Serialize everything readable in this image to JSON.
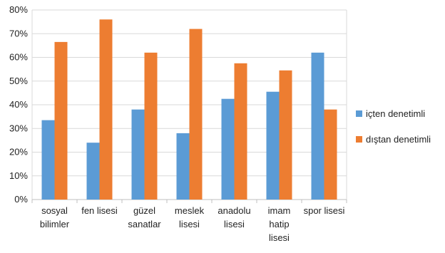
{
  "chart_data": {
    "type": "bar",
    "title": "",
    "xlabel": "",
    "ylabel": "",
    "ylim": [
      0,
      80
    ],
    "y_ticks": [
      "0%",
      "10%",
      "20%",
      "30%",
      "40%",
      "50%",
      "60%",
      "70%",
      "80%"
    ],
    "y_unit": "%",
    "grid": true,
    "legend_position": "right",
    "categories": [
      [
        "sosyal",
        "bilimler"
      ],
      [
        "fen lisesi"
      ],
      [
        "güzel",
        "sanatlar"
      ],
      [
        "meslek",
        "lisesi"
      ],
      [
        "anadolu",
        "lisesi"
      ],
      [
        "imam",
        "hatip",
        "lisesi"
      ],
      [
        "spor lisesi"
      ]
    ],
    "series": [
      {
        "name": "içten denetimli",
        "color": "#5b9bd5",
        "values": [
          33.5,
          24,
          38,
          28,
          42.5,
          45.5,
          62
        ]
      },
      {
        "name": "dıştan denetimli",
        "color": "#ed7d31",
        "values": [
          66.5,
          76,
          62,
          72,
          57.5,
          54.5,
          38
        ]
      }
    ]
  }
}
